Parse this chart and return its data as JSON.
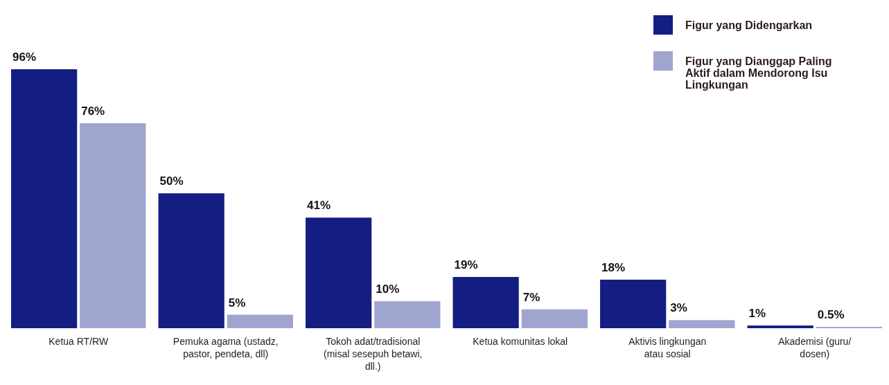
{
  "chart_data": {
    "type": "bar",
    "categories": [
      "Ketua RT/RW",
      "Pemuka agama (ustadz, pastor, pendeta, dll)",
      "Tokoh adat/tradisional (misal sesepuh betawi, dll.)",
      "Ketua komunitas lokal",
      "Aktivis lingkungan atau sosial",
      "Akademisi (guru/ dosen)"
    ],
    "series": [
      {
        "name": "Figur yang Didengarkan",
        "color": "#141e82",
        "values": [
          96,
          50,
          41,
          19,
          18,
          1
        ],
        "value_labels": [
          "96%",
          "50%",
          "41%",
          "19%",
          "18%",
          "1%"
        ]
      },
      {
        "name": "Figur yang Dianggap Paling Aktif dalam Mendorong Isu Lingkungan",
        "color": "#a0a5d0",
        "values": [
          76,
          5,
          10,
          7,
          3,
          0.5
        ],
        "value_labels": [
          "76%",
          "5%",
          "10%",
          "7%",
          "3%",
          "0.5%"
        ]
      }
    ],
    "legend": "top right"
  }
}
